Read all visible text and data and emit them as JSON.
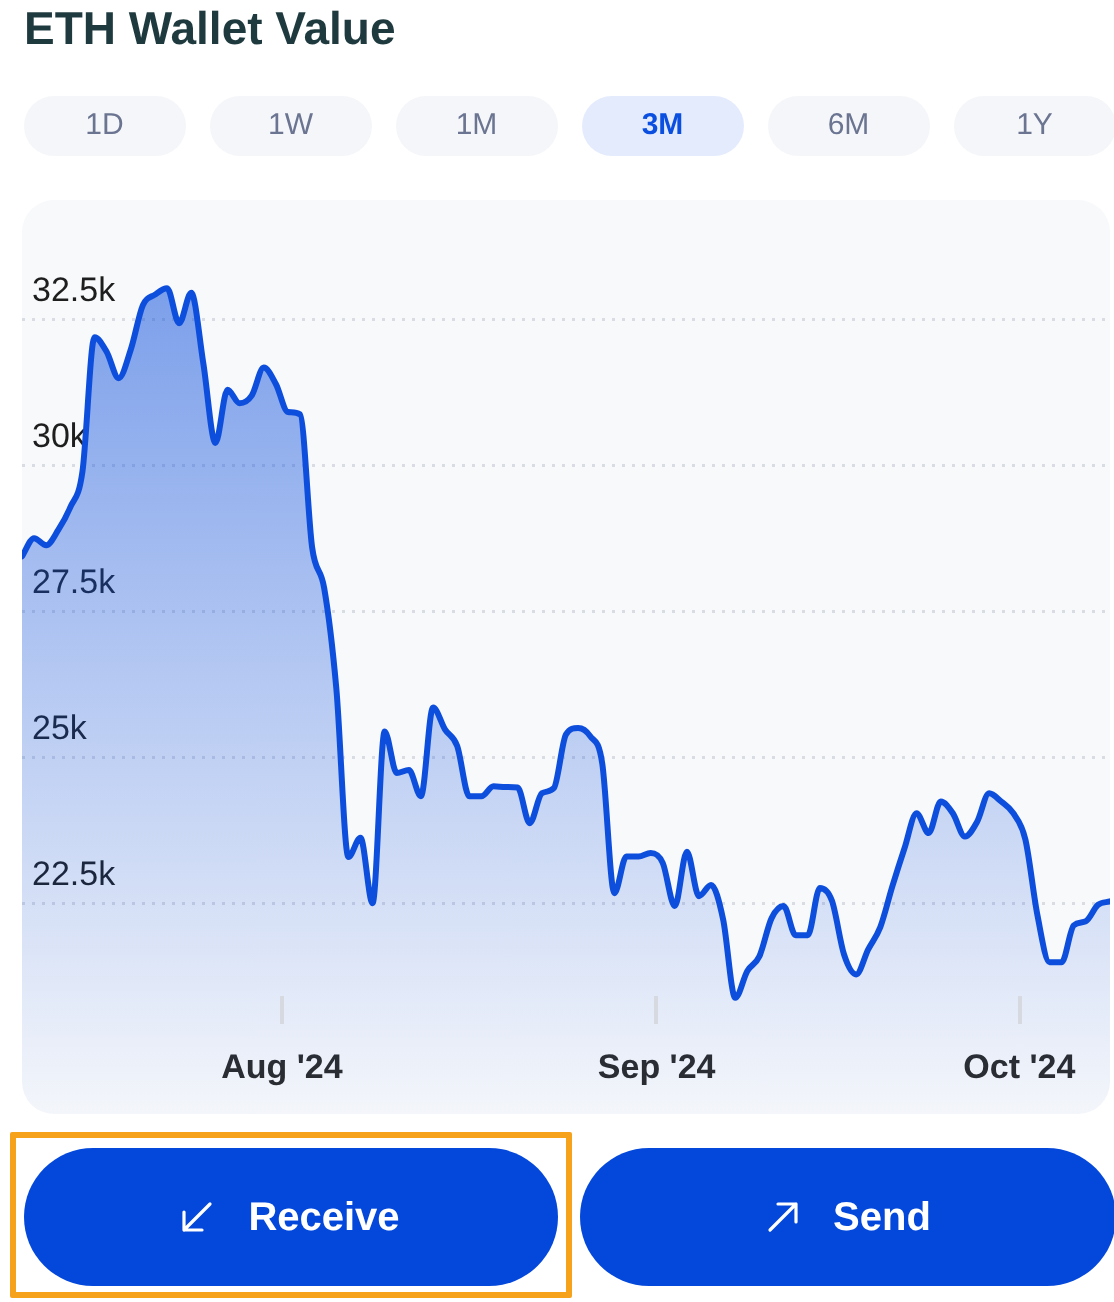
{
  "chart_data": {
    "type": "area",
    "title": "ETH Wallet Value",
    "x": [
      "2024-07-10T12:00",
      "2024-07-11T12:00",
      "2024-07-12T12:00",
      "2024-07-13T12:00",
      "2024-07-14T12:00",
      "2024-07-15T12:00",
      "2024-07-16T12:00",
      "2024-07-17T12:00",
      "2024-07-18T12:00",
      "2024-07-19T12:00",
      "2024-07-20T12:00",
      "2024-07-21T12:00",
      "2024-07-22T12:00",
      "2024-07-23T12:00",
      "2024-07-24T12:00",
      "2024-07-25T12:00",
      "2024-07-26T12:00",
      "2024-07-27T12:00",
      "2024-07-28T12:00",
      "2024-07-29T12:00",
      "2024-07-30T12:00",
      "2024-07-31T12:00",
      "2024-08-01T12:00",
      "2024-08-02T12:00",
      "2024-08-03T12:00",
      "2024-08-04T12:00",
      "2024-08-05T12:00",
      "2024-08-06T12:00",
      "2024-08-07T12:00",
      "2024-08-08T12:00",
      "2024-08-09T12:00",
      "2024-08-10T12:00",
      "2024-08-11T12:00",
      "2024-08-12T12:00",
      "2024-08-13T12:00",
      "2024-08-14T12:00",
      "2024-08-15T12:00",
      "2024-08-16T12:00",
      "2024-08-17T12:00",
      "2024-08-18T12:00",
      "2024-08-19T12:00",
      "2024-08-20T12:00",
      "2024-08-21T12:00",
      "2024-08-22T12:00",
      "2024-08-23T12:00",
      "2024-08-24T12:00",
      "2024-08-25T12:00",
      "2024-08-26T12:00",
      "2024-08-27T12:00",
      "2024-08-28T12:00",
      "2024-08-29T12:00",
      "2024-08-30T12:00",
      "2024-08-31T12:00",
      "2024-09-01T12:00",
      "2024-09-02T12:00",
      "2024-09-03T12:00",
      "2024-09-04T12:00",
      "2024-09-05T12:00",
      "2024-09-06T12:00",
      "2024-09-07T12:00",
      "2024-09-08T12:00",
      "2024-09-09T12:00",
      "2024-09-10T12:00",
      "2024-09-11T12:00",
      "2024-09-12T12:00",
      "2024-09-13T12:00",
      "2024-09-14T12:00",
      "2024-09-15T12:00",
      "2024-09-16T12:00",
      "2024-09-17T12:00",
      "2024-09-18T12:00",
      "2024-09-19T12:00",
      "2024-09-20T12:00",
      "2024-09-21T12:00",
      "2024-09-22T12:00",
      "2024-09-23T12:00",
      "2024-09-24T12:00",
      "2024-09-25T12:00",
      "2024-09-26T12:00",
      "2024-09-27T12:00",
      "2024-09-28T12:00",
      "2024-09-29T12:00",
      "2024-09-30T12:00",
      "2024-10-01T12:00",
      "2024-10-02T12:00",
      "2024-10-03T12:00",
      "2024-10-04T12:00",
      "2024-10-05T12:00",
      "2024-10-06T12:00",
      "2024-10-07T12:00",
      "2024-10-08T12:00"
    ],
    "values": [
      28450,
      28760,
      28640,
      28900,
      29290,
      29900,
      32200,
      31950,
      31500,
      31990,
      32750,
      32930,
      33040,
      32440,
      32960,
      31750,
      30390,
      31300,
      31070,
      31200,
      31680,
      31400,
      30920,
      30880,
      28600,
      27900,
      26190,
      23300,
      23630,
      22510,
      25450,
      24740,
      24790,
      24340,
      25860,
      25480,
      25200,
      24340,
      24340,
      24510,
      24500,
      24490,
      23880,
      24390,
      24480,
      25400,
      25510,
      25370,
      24900,
      22680,
      23310,
      23310,
      23370,
      23200,
      22460,
      23390,
      22630,
      22820,
      22230,
      20890,
      21350,
      21600,
      22250,
      22460,
      21960,
      21960,
      22770,
      22550,
      21630,
      21290,
      21720,
      22100,
      22800,
      23450,
      24050,
      23710,
      24250,
      24050,
      23650,
      23900,
      24390,
      24250,
      24050,
      23600,
      22300,
      21500,
      21500,
      22130,
      22200,
      22480,
      22540
    ],
    "color": "#0d4fdc",
    "xlim": [
      "2024-07-10T12:00",
      "2024-10-08T12:00"
    ],
    "xticks": [
      {
        "value": "2024-08-01",
        "label": "Aug '24"
      },
      {
        "value": "2024-09-01",
        "label": "Sep '24"
      },
      {
        "value": "2024-10-01",
        "label": "Oct '24"
      }
    ],
    "ylim": [
      18900,
      34550
    ],
    "yticks": [
      {
        "value": 22500,
        "label": "22.5k"
      },
      {
        "value": 25000,
        "label": "25k"
      },
      {
        "value": 27500,
        "label": "27.5k"
      },
      {
        "value": 30000,
        "label": "30k"
      },
      {
        "value": 32500,
        "label": "32.5k"
      }
    ],
    "grid": "y",
    "annotations": [
      "1D",
      "1W",
      "1M",
      "3M",
      "6M",
      "1Y",
      "Receive",
      "Send"
    ]
  }
}
